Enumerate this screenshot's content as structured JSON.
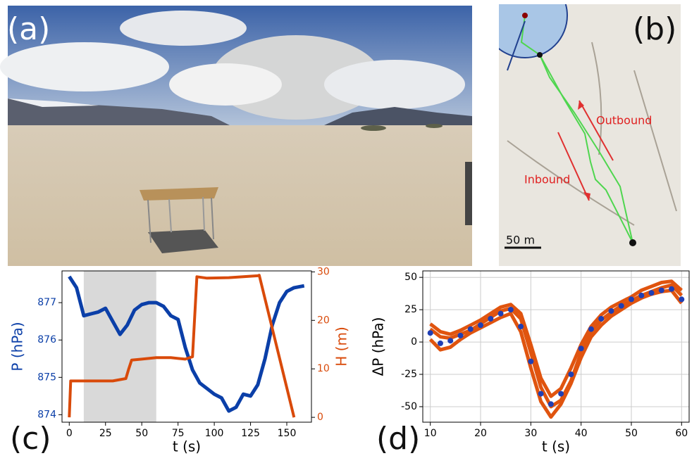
{
  "panels": [
    "(a)",
    "(b)",
    "(c)",
    "(d)"
  ],
  "map": {
    "outbound": "Outbound",
    "inbound": "Inbound",
    "scale": "50 m"
  },
  "chart_data": [
    {
      "type": "line",
      "xlabel": "t (s)",
      "ylabel": "P (hPa)",
      "y2label": "H (m)",
      "ylabel_color": "#0b3fa8",
      "y2label_color": "#d94a0a",
      "xlim": [
        -5,
        167
      ],
      "xticks": [
        0,
        25,
        50,
        75,
        100,
        125,
        150
      ],
      "ylim": [
        873.8,
        877.85
      ],
      "yticks": [
        874,
        875,
        876,
        877
      ],
      "y2lim": [
        -1,
        30.2
      ],
      "y2ticks": [
        0,
        10,
        20,
        30
      ],
      "highlight_x": [
        10,
        60
      ],
      "highlight_color": "#d9d9d9",
      "series": [
        {
          "color": "#0b3fa8",
          "x": [
            0,
            5,
            10,
            15,
            20,
            25,
            30,
            35,
            40,
            45,
            50,
            55,
            60,
            65,
            70,
            75,
            80,
            85,
            90,
            95,
            100,
            105,
            110,
            115,
            120,
            125,
            130,
            135,
            140,
            145,
            150,
            155,
            162
          ],
          "values": [
            877.7,
            877.4,
            876.65,
            876.7,
            876.75,
            876.85,
            876.5,
            876.15,
            876.4,
            876.8,
            876.95,
            877.0,
            877.0,
            876.9,
            876.65,
            876.55,
            875.8,
            875.2,
            874.85,
            874.7,
            874.55,
            874.45,
            874.1,
            874.2,
            874.55,
            874.5,
            874.8,
            875.5,
            876.4,
            877.0,
            877.3,
            877.4,
            877.45
          ]
        },
        {
          "color": "#d94a0a",
          "axis": "y2",
          "x": [
            0,
            1,
            10,
            20,
            30,
            39,
            41,
            43,
            50,
            60,
            70,
            80,
            85,
            88,
            95,
            110,
            130,
            131,
            155
          ],
          "values": [
            0,
            7.5,
            7.5,
            7.5,
            7.5,
            8,
            10,
            11.8,
            12,
            12.3,
            12.3,
            12,
            12.5,
            29,
            28.7,
            28.8,
            29.2,
            29.3,
            0
          ]
        }
      ]
    },
    {
      "type": "line",
      "xlabel": "t (s)",
      "ylabel": "ΔP (hPa)",
      "grid": true,
      "xlim": [
        8.5,
        61.5
      ],
      "xticks": [
        10,
        20,
        30,
        40,
        50,
        60
      ],
      "ylim": [
        -62,
        55
      ],
      "yticks": [
        -50,
        -25,
        0,
        25,
        50
      ],
      "series": [
        {
          "color": "#e0540f",
          "x": [
            10,
            12,
            14,
            16,
            18,
            20,
            22,
            24,
            26,
            28,
            30,
            32,
            34,
            36,
            38,
            40,
            42,
            44,
            46,
            48,
            50,
            52,
            54,
            56,
            58,
            60
          ],
          "values": [
            10,
            4,
            3,
            6,
            9,
            14,
            19,
            24,
            26,
            18,
            -8,
            -35,
            -50,
            -45,
            -30,
            -8,
            8,
            17,
            23,
            28,
            32,
            36,
            39,
            42,
            44,
            36
          ]
        },
        {
          "color": "#e0540f",
          "x": [
            10,
            12,
            14,
            16,
            18,
            20,
            22,
            24,
            26,
            28,
            30,
            32,
            34,
            36,
            38,
            40,
            42,
            44,
            46,
            48,
            50,
            52,
            54,
            56,
            58,
            60
          ],
          "values": [
            2,
            -6,
            -4,
            2,
            7,
            11,
            15,
            19,
            22,
            8,
            -20,
            -46,
            -58,
            -48,
            -32,
            -12,
            4,
            13,
            20,
            25,
            30,
            34,
            37,
            39,
            40,
            30
          ]
        },
        {
          "color": "#e0540f",
          "x": [
            10,
            12,
            14,
            16,
            18,
            20,
            22,
            24,
            26,
            28,
            30,
            32,
            34,
            36,
            38,
            40,
            42,
            44,
            46,
            48,
            50,
            52,
            54,
            56,
            58,
            60
          ],
          "values": [
            14,
            8,
            6,
            9,
            13,
            17,
            22,
            27,
            29,
            22,
            -2,
            -28,
            -42,
            -36,
            -20,
            -2,
            12,
            21,
            27,
            31,
            35,
            40,
            43,
            46,
            47,
            40
          ]
        },
        {
          "color": "#1f3fb5",
          "kind": "scatter",
          "x": [
            10,
            12,
            14,
            16,
            18,
            20,
            22,
            24,
            26,
            28,
            30,
            32,
            34,
            36,
            38,
            40,
            42,
            44,
            46,
            48,
            50,
            52,
            54,
            56,
            58,
            60
          ],
          "values": [
            7,
            -1,
            1,
            5,
            10,
            13,
            18,
            22,
            25,
            12,
            -15,
            -40,
            -48,
            -40,
            -25,
            -5,
            10,
            18,
            24,
            28,
            33,
            36,
            38,
            40,
            41,
            33
          ]
        }
      ]
    }
  ]
}
